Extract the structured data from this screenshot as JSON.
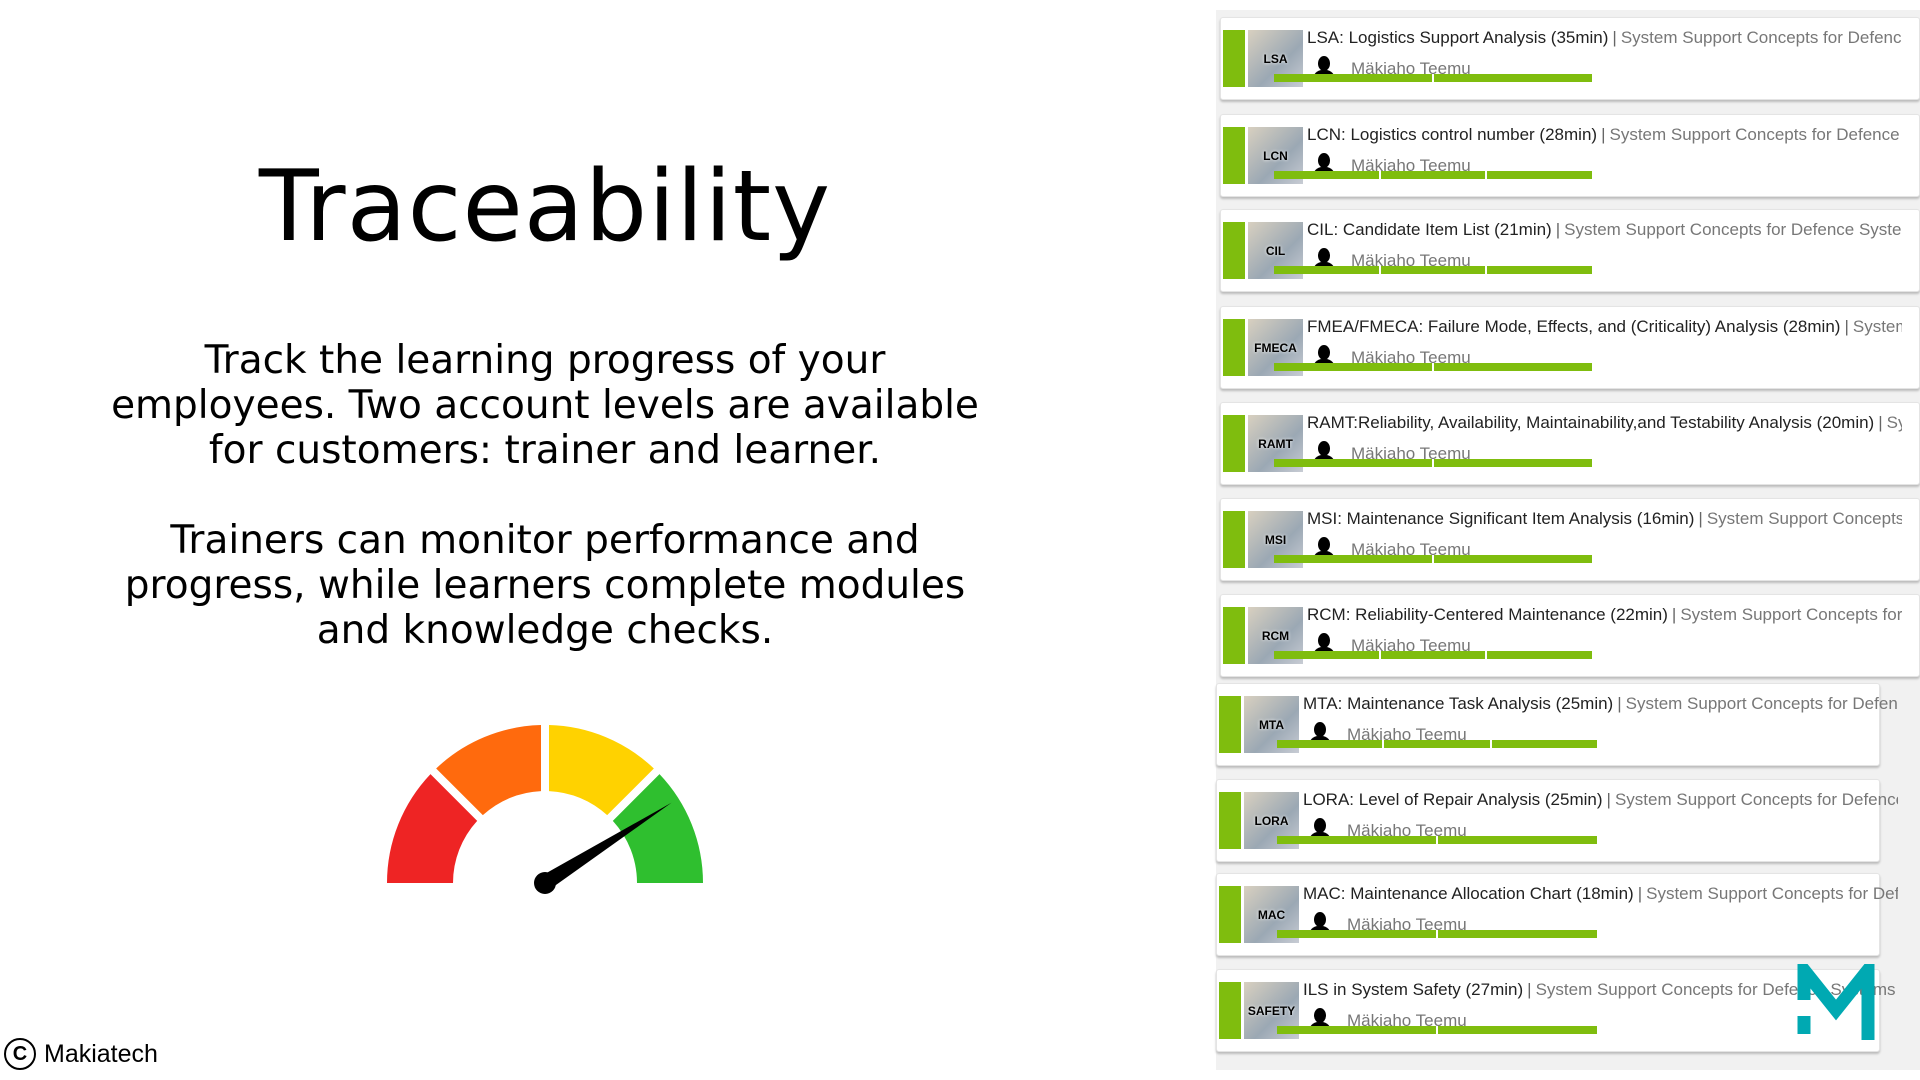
{
  "title": "Traceability",
  "paragraph1": [
    "Track the learning progress of your",
    "employees. Two account levels are available",
    "for customers: trainer and learner."
  ],
  "paragraph2": [
    "Trainers can monitor performance and",
    "progress, while learners complete modules",
    "and knowledge checks."
  ],
  "gauge": {
    "colors": [
      "#ee2424",
      "#ff6a0d",
      "#ffd200",
      "#2fbf2f"
    ],
    "needle_level": 0.82
  },
  "copyright": {
    "symbol": "C",
    "text": "Makiatech"
  },
  "accent": "#7fbd0e",
  "logo": {
    "letter": "M",
    "color": "#00a9b2"
  },
  "courses": [
    {
      "thumb": "LSA",
      "title": "LSA: Logistics Support Analysis (35min)",
      "course": "System Support Concepts for Defence Systems",
      "user": "Mäkiaho Teemu",
      "segments": 2
    },
    {
      "thumb": "LCN",
      "title": "LCN: Logistics control number (28min)",
      "course": "System Support Concepts for Defence Systems",
      "user": "Mäkiaho Teemu",
      "segments": 3
    },
    {
      "thumb": "CIL",
      "title": "CIL: Candidate Item List (21min)",
      "course": "System Support Concepts for Defence Systems",
      "user": "Mäkiaho Teemu",
      "segments": 3
    },
    {
      "thumb": "FMECA",
      "title": "FMEA/FMECA: Failure Mode, Effects, and (Criticality) Analysis (28min)",
      "course": "System Support Concepts for Defence Systems",
      "user": "Mäkiaho Teemu",
      "segments": 2
    },
    {
      "thumb": "RAMT",
      "title": "RAMT:Reliability, Availability, Maintainability,and Testability Analysis (20min)",
      "course": "System Support Concepts for Defence Systems",
      "user": "Mäkiaho Teemu",
      "segments": 2
    },
    {
      "thumb": "MSI",
      "title": "MSI: Maintenance Significant Item Analysis (16min)",
      "course": "System Support Concepts for Defence Systems",
      "user": "Mäkiaho Teemu",
      "segments": 2
    },
    {
      "thumb": "RCM",
      "title": "RCM: Reliability-Centered Maintenance (22min)",
      "course": "System Support Concepts for Defence Systems",
      "user": "Mäkiaho Teemu",
      "segments": 3
    },
    {
      "thumb": "MTA",
      "title": "MTA: Maintenance Task Analysis (25min)",
      "course": "System Support Concepts for Defence Systems",
      "user": "Mäkiaho Teemu",
      "segments": 3
    },
    {
      "thumb": "LORA",
      "title": "LORA: Level of Repair Analysis (25min)",
      "course": "System Support Concepts for Defence Systems",
      "user": "Mäkiaho Teemu",
      "segments": 2
    },
    {
      "thumb": "MAC",
      "title": "MAC: Maintenance Allocation Chart (18min)",
      "course": "System Support Concepts for Defence Systems",
      "user": "Mäkiaho Teemu",
      "segments": 2
    },
    {
      "thumb": "SAFETY",
      "title": "ILS in System Safety (27min)",
      "course": "System Support Concepts for Defence Systems",
      "user": "Mäkiaho Teemu",
      "segments": 2
    }
  ]
}
